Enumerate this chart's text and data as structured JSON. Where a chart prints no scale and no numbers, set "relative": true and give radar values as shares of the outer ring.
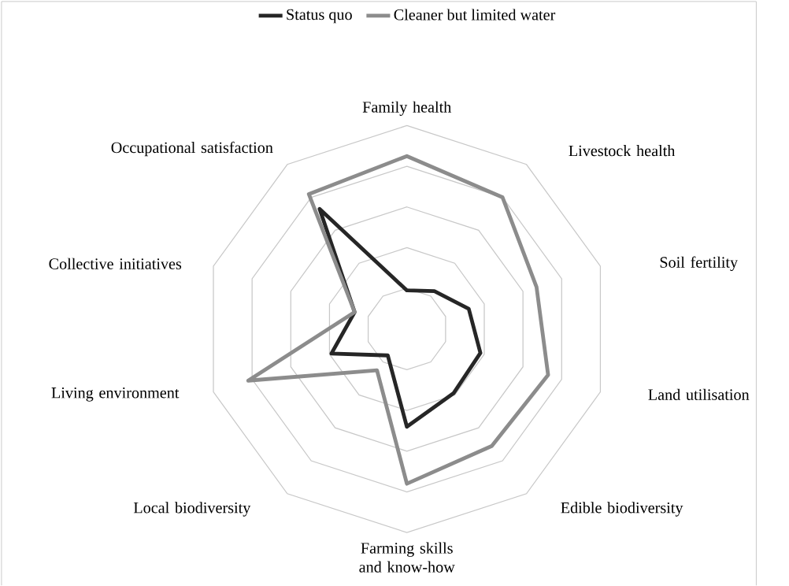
{
  "chart_data": {
    "type": "radar",
    "relative": true,
    "grid": true,
    "legend": "top",
    "categories": [
      "Family health",
      "Livestock health",
      "Soil fertility",
      "Land utilisation",
      "Edible biodiversity",
      "Farming skills and know-how",
      "Local biodiversity",
      "Living environment",
      "Collective initiatives",
      "Occupational satisfaction"
    ],
    "series": [
      {
        "name": "Status quo",
        "color": "#262626",
        "values": [
          0.19,
          0.23,
          0.32,
          0.38,
          0.39,
          0.48,
          0.16,
          0.39,
          0.27,
          0.73
        ]
      },
      {
        "name": "Cleaner but limited water",
        "color": "#8c8c8c",
        "values": [
          0.85,
          0.8,
          0.67,
          0.73,
          0.71,
          0.76,
          0.25,
          0.82,
          0.27,
          0.82
        ]
      }
    ]
  }
}
